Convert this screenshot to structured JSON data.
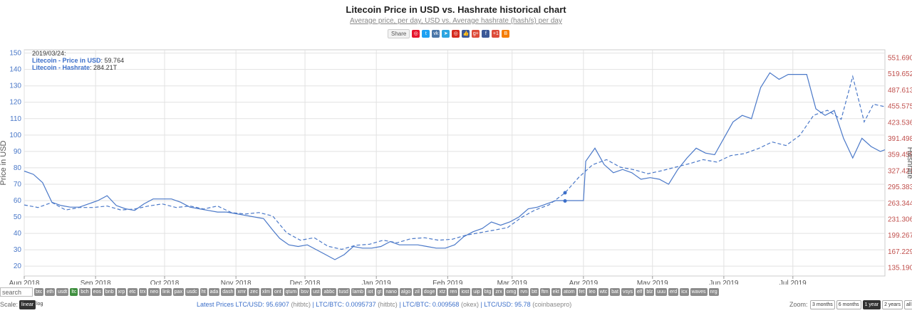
{
  "header": {
    "title": "Litecoin Price in USD vs. Hashrate historical chart",
    "subtitle": "Average price, per day, USD vs. Average hashrate (hash/s) per day"
  },
  "sharebar": {
    "share_label": "Share",
    "icons": [
      {
        "name": "weibo-icon",
        "color": "#e6162d",
        "glyph": "◎"
      },
      {
        "name": "twitter-icon",
        "color": "#1da1f2",
        "glyph": "t"
      },
      {
        "name": "vk-icon",
        "color": "#4a76a8",
        "glyph": "vk"
      },
      {
        "name": "telegram-icon",
        "color": "#2ca5e0",
        "glyph": "➤"
      },
      {
        "name": "weibo2-icon",
        "color": "#d52b1e",
        "glyph": "◎"
      },
      {
        "name": "like-icon",
        "color": "#3b5998",
        "glyph": "👍"
      },
      {
        "name": "gplus-icon",
        "color": "#dd4b39",
        "glyph": "g+"
      },
      {
        "name": "facebook-icon",
        "color": "#3b5998",
        "glyph": "f"
      },
      {
        "name": "gplus-one-icon",
        "color": "#dd4b39",
        "glyph": "+1"
      },
      {
        "name": "blogger-icon",
        "color": "#f57d00",
        "glyph": "B"
      }
    ]
  },
  "tooltip": {
    "date": "2019/03/24:",
    "price_name": "Litecoin - Price in USD",
    "price_value": "59.764",
    "hash_name": "Litecoin - Hashrate",
    "hash_value": "284.21T"
  },
  "chart_data": {
    "type": "line",
    "title": "Litecoin Price in USD vs. Hashrate historical chart",
    "subtitle": "Average price, per day, USD vs. Average hashrate (hash/s) per day",
    "xlabel": "",
    "x_tick_labels": [
      "Aug 2018",
      "Sep 2018",
      "Oct 2018",
      "Nov 2018",
      "Dec 2018",
      "Jan 2019",
      "Feb 2019",
      "Mar 2019",
      "Apr 2019",
      "May 2019",
      "Jun 2019",
      "Jul 2019"
    ],
    "x_range": [
      "2018-08-01",
      "2019-08-10"
    ],
    "y_left": {
      "label": "Price in USD",
      "range": [
        14,
        152
      ],
      "ticks": [
        20,
        30,
        40,
        50,
        60,
        70,
        80,
        90,
        100,
        110,
        120,
        130,
        140,
        150
      ]
    },
    "y_right": {
      "label": "Hashrate",
      "range": [
        119,
        568
      ],
      "ticks": [
        "135.190T",
        "167.229T",
        "199.267T",
        "231.306T",
        "263.344T",
        "295.383T",
        "327.421T",
        "359.459T",
        "391.498T",
        "423.536T",
        "455.575T",
        "487.613T",
        "519.652T",
        "551.690T"
      ],
      "tick_values": [
        135.19,
        167.229,
        199.267,
        231.306,
        263.344,
        295.383,
        327.421,
        359.459,
        391.498,
        423.536,
        455.575,
        487.613,
        519.652,
        551.69
      ]
    },
    "grid": true,
    "series": [
      {
        "name": "Litecoin - Price in USD",
        "axis": "left",
        "style": "solid",
        "color": "#4a78c8",
        "points": [
          [
            "2018-08-01",
            78
          ],
          [
            "2018-08-05",
            76
          ],
          [
            "2018-08-09",
            71
          ],
          [
            "2018-08-13",
            59
          ],
          [
            "2018-08-17",
            57
          ],
          [
            "2018-08-21",
            56
          ],
          [
            "2018-08-25",
            56
          ],
          [
            "2018-08-29",
            58
          ],
          [
            "2018-09-02",
            60
          ],
          [
            "2018-09-06",
            63
          ],
          [
            "2018-09-10",
            57
          ],
          [
            "2018-09-14",
            55
          ],
          [
            "2018-09-18",
            54
          ],
          [
            "2018-09-22",
            58
          ],
          [
            "2018-09-26",
            61
          ],
          [
            "2018-09-30",
            61
          ],
          [
            "2018-10-04",
            61
          ],
          [
            "2018-10-08",
            59
          ],
          [
            "2018-10-12",
            56
          ],
          [
            "2018-10-16",
            55
          ],
          [
            "2018-10-20",
            54
          ],
          [
            "2018-10-24",
            53
          ],
          [
            "2018-10-28",
            53
          ],
          [
            "2018-11-01",
            52
          ],
          [
            "2018-11-05",
            51
          ],
          [
            "2018-11-09",
            50
          ],
          [
            "2018-11-13",
            49
          ],
          [
            "2018-11-17",
            42
          ],
          [
            "2018-11-20",
            37
          ],
          [
            "2018-11-24",
            33
          ],
          [
            "2018-11-28",
            32
          ],
          [
            "2018-12-02",
            33
          ],
          [
            "2018-12-06",
            30
          ],
          [
            "2018-12-10",
            27
          ],
          [
            "2018-12-14",
            24
          ],
          [
            "2018-12-18",
            27
          ],
          [
            "2018-12-22",
            32
          ],
          [
            "2018-12-26",
            31
          ],
          [
            "2018-12-30",
            31
          ],
          [
            "2019-01-03",
            32
          ],
          [
            "2019-01-07",
            35
          ],
          [
            "2019-01-11",
            33
          ],
          [
            "2019-01-15",
            33
          ],
          [
            "2019-01-19",
            33
          ],
          [
            "2019-01-23",
            32
          ],
          [
            "2019-01-27",
            31
          ],
          [
            "2019-01-31",
            31
          ],
          [
            "2019-02-04",
            33
          ],
          [
            "2019-02-08",
            38
          ],
          [
            "2019-02-12",
            41
          ],
          [
            "2019-02-16",
            43
          ],
          [
            "2019-02-20",
            47
          ],
          [
            "2019-02-24",
            45
          ],
          [
            "2019-02-28",
            47
          ],
          [
            "2019-03-04",
            50
          ],
          [
            "2019-03-08",
            55
          ],
          [
            "2019-03-12",
            56
          ],
          [
            "2019-03-16",
            58
          ],
          [
            "2019-03-20",
            60
          ],
          [
            "2019-03-24",
            60
          ],
          [
            "2019-03-28",
            60
          ],
          [
            "2019-04-01",
            60
          ],
          [
            "2019-04-02",
            84
          ],
          [
            "2019-04-06",
            92
          ],
          [
            "2019-04-10",
            82
          ],
          [
            "2019-04-14",
            77
          ],
          [
            "2019-04-18",
            79
          ],
          [
            "2019-04-22",
            77
          ],
          [
            "2019-04-26",
            73
          ],
          [
            "2019-04-30",
            74
          ],
          [
            "2019-05-04",
            73
          ],
          [
            "2019-05-08",
            70
          ],
          [
            "2019-05-12",
            79
          ],
          [
            "2019-05-16",
            86
          ],
          [
            "2019-05-20",
            92
          ],
          [
            "2019-05-24",
            89
          ],
          [
            "2019-05-28",
            88
          ],
          [
            "2019-06-01",
            98
          ],
          [
            "2019-06-05",
            108
          ],
          [
            "2019-06-09",
            112
          ],
          [
            "2019-06-13",
            110
          ],
          [
            "2019-06-17",
            129
          ],
          [
            "2019-06-21",
            138
          ],
          [
            "2019-06-25",
            134
          ],
          [
            "2019-06-29",
            137
          ],
          [
            "2019-07-03",
            137
          ],
          [
            "2019-07-07",
            137
          ],
          [
            "2019-07-11",
            116
          ],
          [
            "2019-07-15",
            112
          ],
          [
            "2019-07-19",
            115
          ],
          [
            "2019-07-23",
            98
          ],
          [
            "2019-07-27",
            86
          ],
          [
            "2019-07-31",
            98
          ],
          [
            "2019-08-04",
            93
          ],
          [
            "2019-08-08",
            90
          ],
          [
            "2019-08-10",
            91
          ]
        ]
      },
      {
        "name": "Litecoin - Hashrate",
        "axis": "right",
        "style": "dashed",
        "color": "#4a78c8",
        "points": [
          [
            "2018-08-01",
            260
          ],
          [
            "2018-08-07",
            255
          ],
          [
            "2018-08-13",
            265
          ],
          [
            "2018-08-19",
            250
          ],
          [
            "2018-08-25",
            255
          ],
          [
            "2018-08-31",
            255
          ],
          [
            "2018-09-06",
            258
          ],
          [
            "2018-09-12",
            250
          ],
          [
            "2018-09-18",
            252
          ],
          [
            "2018-09-24",
            258
          ],
          [
            "2018-09-30",
            262
          ],
          [
            "2018-10-06",
            255
          ],
          [
            "2018-10-12",
            258
          ],
          [
            "2018-10-18",
            252
          ],
          [
            "2018-10-24",
            258
          ],
          [
            "2018-10-30",
            245
          ],
          [
            "2018-11-05",
            242
          ],
          [
            "2018-11-11",
            245
          ],
          [
            "2018-11-17",
            238
          ],
          [
            "2018-11-23",
            205
          ],
          [
            "2018-11-29",
            190
          ],
          [
            "2018-12-05",
            195
          ],
          [
            "2018-12-11",
            178
          ],
          [
            "2018-12-17",
            172
          ],
          [
            "2018-12-23",
            180
          ],
          [
            "2018-12-29",
            182
          ],
          [
            "2019-01-04",
            190
          ],
          [
            "2019-01-10",
            185
          ],
          [
            "2019-01-16",
            193
          ],
          [
            "2019-01-22",
            195
          ],
          [
            "2019-01-28",
            190
          ],
          [
            "2019-02-03",
            192
          ],
          [
            "2019-02-09",
            200
          ],
          [
            "2019-02-15",
            205
          ],
          [
            "2019-02-21",
            210
          ],
          [
            "2019-02-27",
            215
          ],
          [
            "2019-03-05",
            235
          ],
          [
            "2019-03-11",
            250
          ],
          [
            "2019-03-17",
            260
          ],
          [
            "2019-03-24",
            284
          ],
          [
            "2019-03-30",
            315
          ],
          [
            "2019-04-05",
            340
          ],
          [
            "2019-04-11",
            350
          ],
          [
            "2019-04-17",
            335
          ],
          [
            "2019-04-23",
            330
          ],
          [
            "2019-04-29",
            322
          ],
          [
            "2019-05-05",
            328
          ],
          [
            "2019-05-11",
            335
          ],
          [
            "2019-05-17",
            342
          ],
          [
            "2019-05-23",
            350
          ],
          [
            "2019-05-29",
            345
          ],
          [
            "2019-06-04",
            358
          ],
          [
            "2019-06-10",
            362
          ],
          [
            "2019-06-16",
            372
          ],
          [
            "2019-06-22",
            385
          ],
          [
            "2019-06-28",
            378
          ],
          [
            "2019-07-04",
            398
          ],
          [
            "2019-07-10",
            438
          ],
          [
            "2019-07-16",
            448
          ],
          [
            "2019-07-22",
            430
          ],
          [
            "2019-07-27",
            515
          ],
          [
            "2019-08-01",
            425
          ],
          [
            "2019-08-05",
            460
          ],
          [
            "2019-08-10",
            455
          ]
        ]
      }
    ]
  },
  "controls": {
    "search_placeholder": "search",
    "coins": [
      "btc",
      "eth",
      "usdt",
      "ltc",
      "bch",
      "eos",
      "bnb",
      "xrp",
      "etc",
      "trx",
      "neo",
      "link",
      "pax",
      "usdc",
      "ht",
      "ada",
      "dash",
      "xmr",
      "zec",
      "xlm",
      "ont",
      "qtum",
      "bsv",
      "ust",
      "abbc",
      "tusd",
      "lamb",
      "iot",
      "gt",
      "nano",
      "algo",
      "zil",
      "doge",
      "xtz",
      "ren",
      "iost",
      "uip",
      "btg",
      "zrx",
      "omg",
      "rvn",
      "btt",
      "ftm",
      "ekt",
      "atom",
      "fet",
      "leo",
      "wtc",
      "bat",
      "vsys",
      "elf",
      "blz",
      "uuu",
      "erd",
      "icx",
      "waves",
      "nrg"
    ],
    "active_coin": "ltc",
    "scale_label": "Scale:",
    "scale_linear": "linear",
    "scale_log": "log",
    "scale_active": "linear",
    "latest_label": "Latest Prices",
    "latest_prices": [
      {
        "text": "LTC/USD: 95.6907",
        "src": "(hitbtc)"
      },
      {
        "text": "LTC/BTC: 0.0095737",
        "src": "(hitbtc)"
      },
      {
        "text": "LTC/BTC: 0.009568",
        "src": "(okex)"
      },
      {
        "text": "LTC/USD: 95.78",
        "src": "(coinbasepro)"
      }
    ],
    "zoom_label": "Zoom:",
    "zoom_options": [
      "3 months",
      "6 months",
      "1 year",
      "2 years",
      "all time"
    ],
    "zoom_active": "1 year"
  }
}
